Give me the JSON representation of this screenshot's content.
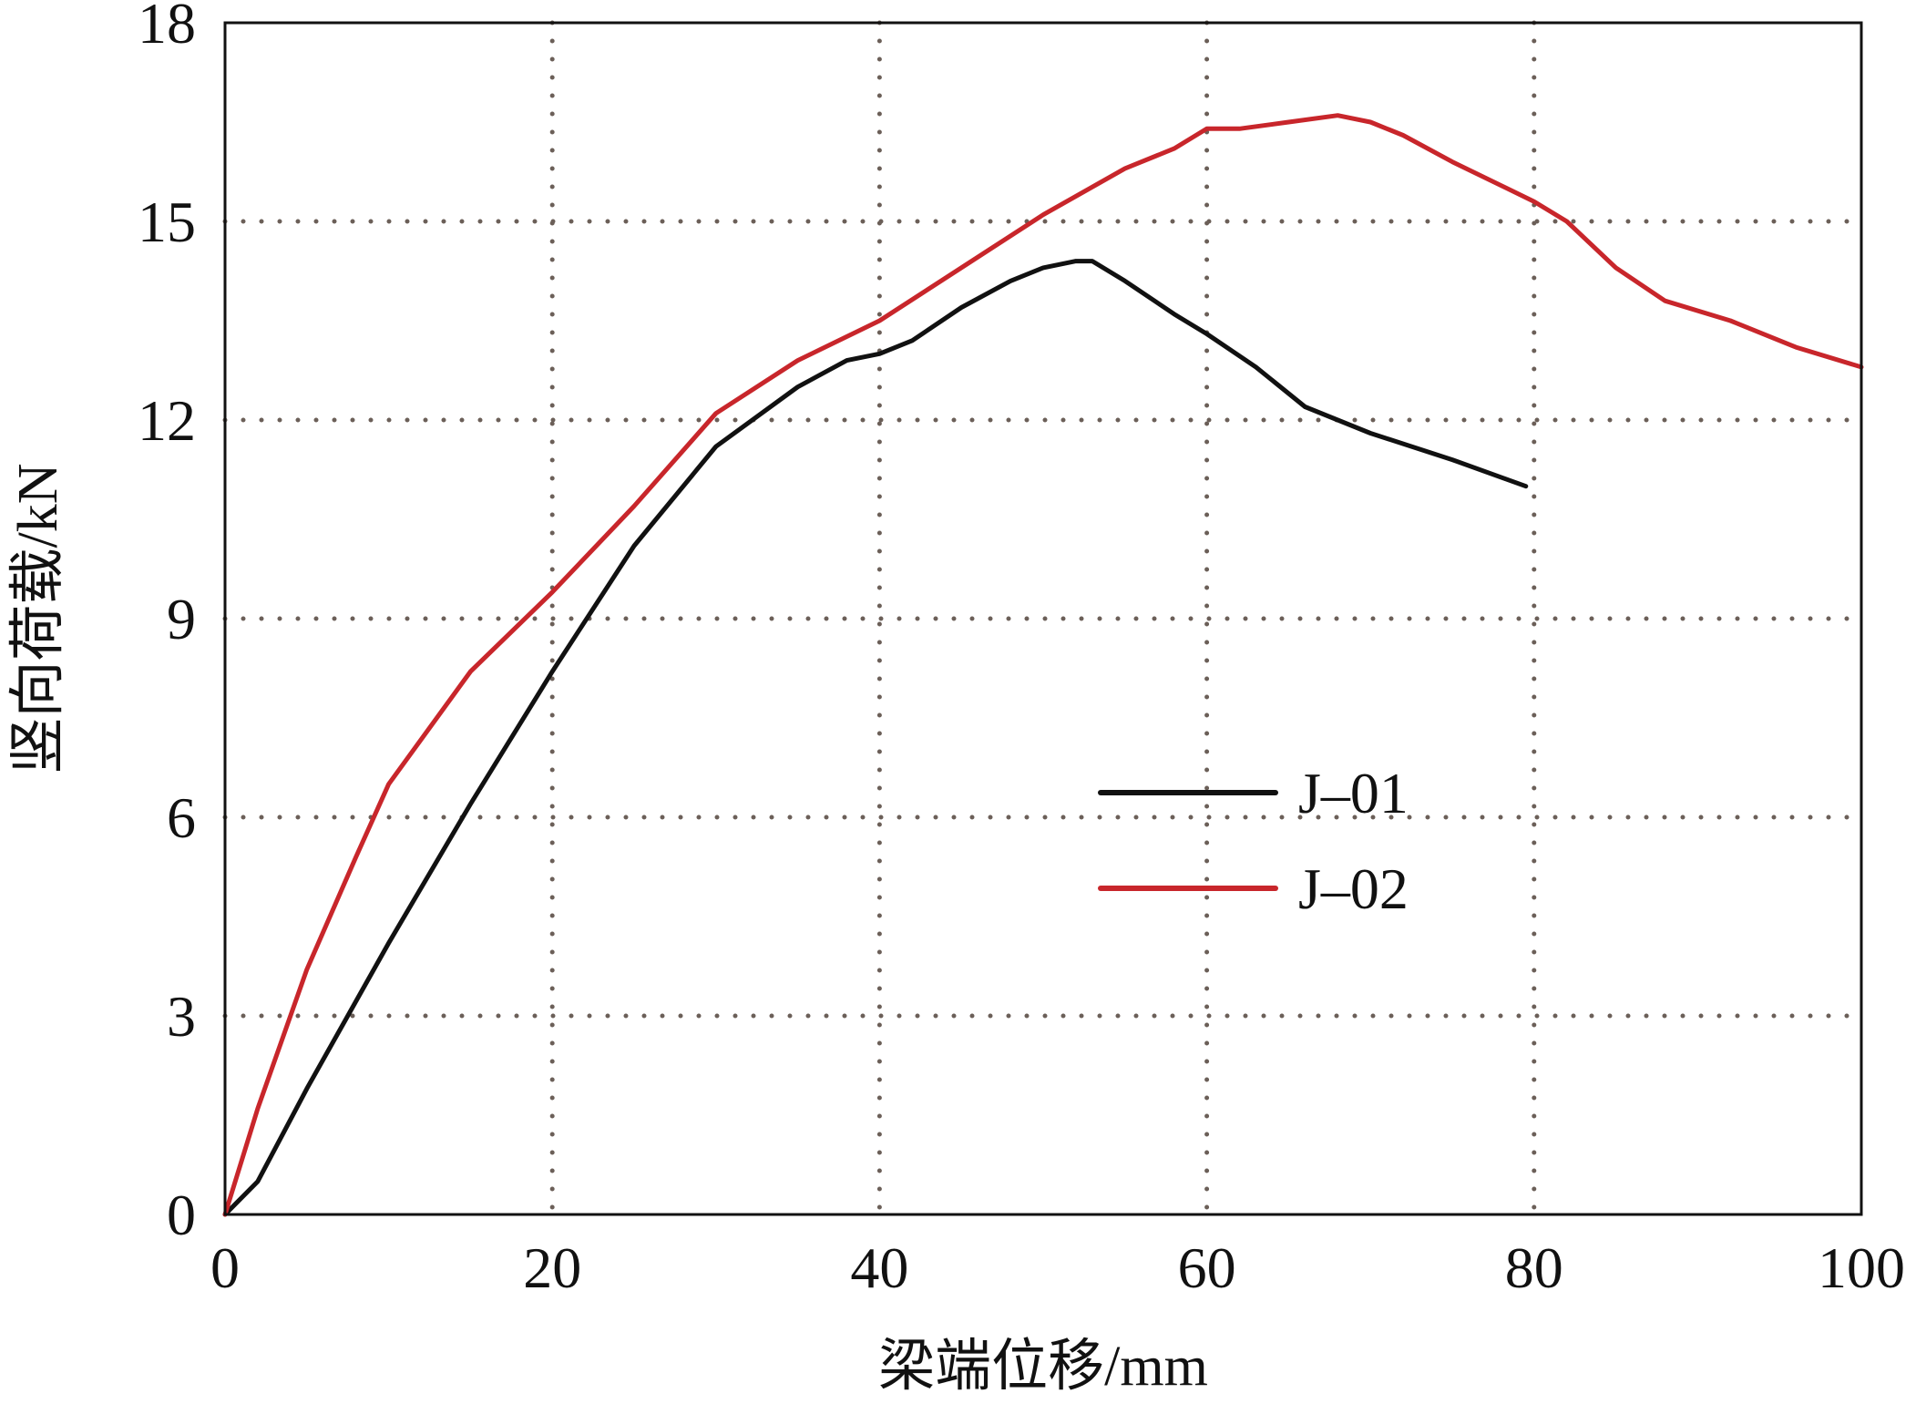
{
  "chart_data": {
    "type": "line",
    "title": "",
    "xlabel": "梁端位移/mm",
    "ylabel": "竖向荷载/kN",
    "xlim": [
      0,
      100
    ],
    "ylim": [
      0,
      18
    ],
    "xticks": [
      0,
      20,
      40,
      60,
      80,
      100
    ],
    "yticks": [
      0,
      3,
      6,
      9,
      12,
      15,
      18
    ],
    "grid": true,
    "legend_position": "center-right",
    "series": [
      {
        "name": "J–01",
        "color": "#111111",
        "x": [
          0,
          2,
          5,
          10,
          15,
          20,
          25,
          30,
          35,
          38,
          40,
          42,
          45,
          48,
          50,
          52,
          53,
          55,
          58,
          60,
          63,
          66,
          70,
          75,
          79.5
        ],
        "y": [
          0,
          0.5,
          1.9,
          4.1,
          6.2,
          8.2,
          10.1,
          11.6,
          12.5,
          12.9,
          13.0,
          13.2,
          13.7,
          14.1,
          14.3,
          14.4,
          14.4,
          14.1,
          13.6,
          13.3,
          12.8,
          12.2,
          11.8,
          11.4,
          11.0
        ]
      },
      {
        "name": "J–02",
        "color": "#c8262b",
        "x": [
          0,
          2,
          5,
          8,
          10,
          15,
          20,
          25,
          30,
          35,
          40,
          45,
          50,
          55,
          58,
          60,
          62,
          65,
          68,
          70,
          72,
          75,
          80,
          82,
          85,
          88,
          92,
          96,
          100
        ],
        "y": [
          0,
          1.6,
          3.7,
          5.4,
          6.5,
          8.2,
          9.4,
          10.7,
          12.1,
          12.9,
          13.5,
          14.3,
          15.1,
          15.8,
          16.1,
          16.4,
          16.4,
          16.5,
          16.6,
          16.5,
          16.3,
          15.9,
          15.3,
          15.0,
          14.3,
          13.8,
          13.5,
          13.1,
          12.8
        ]
      }
    ]
  }
}
